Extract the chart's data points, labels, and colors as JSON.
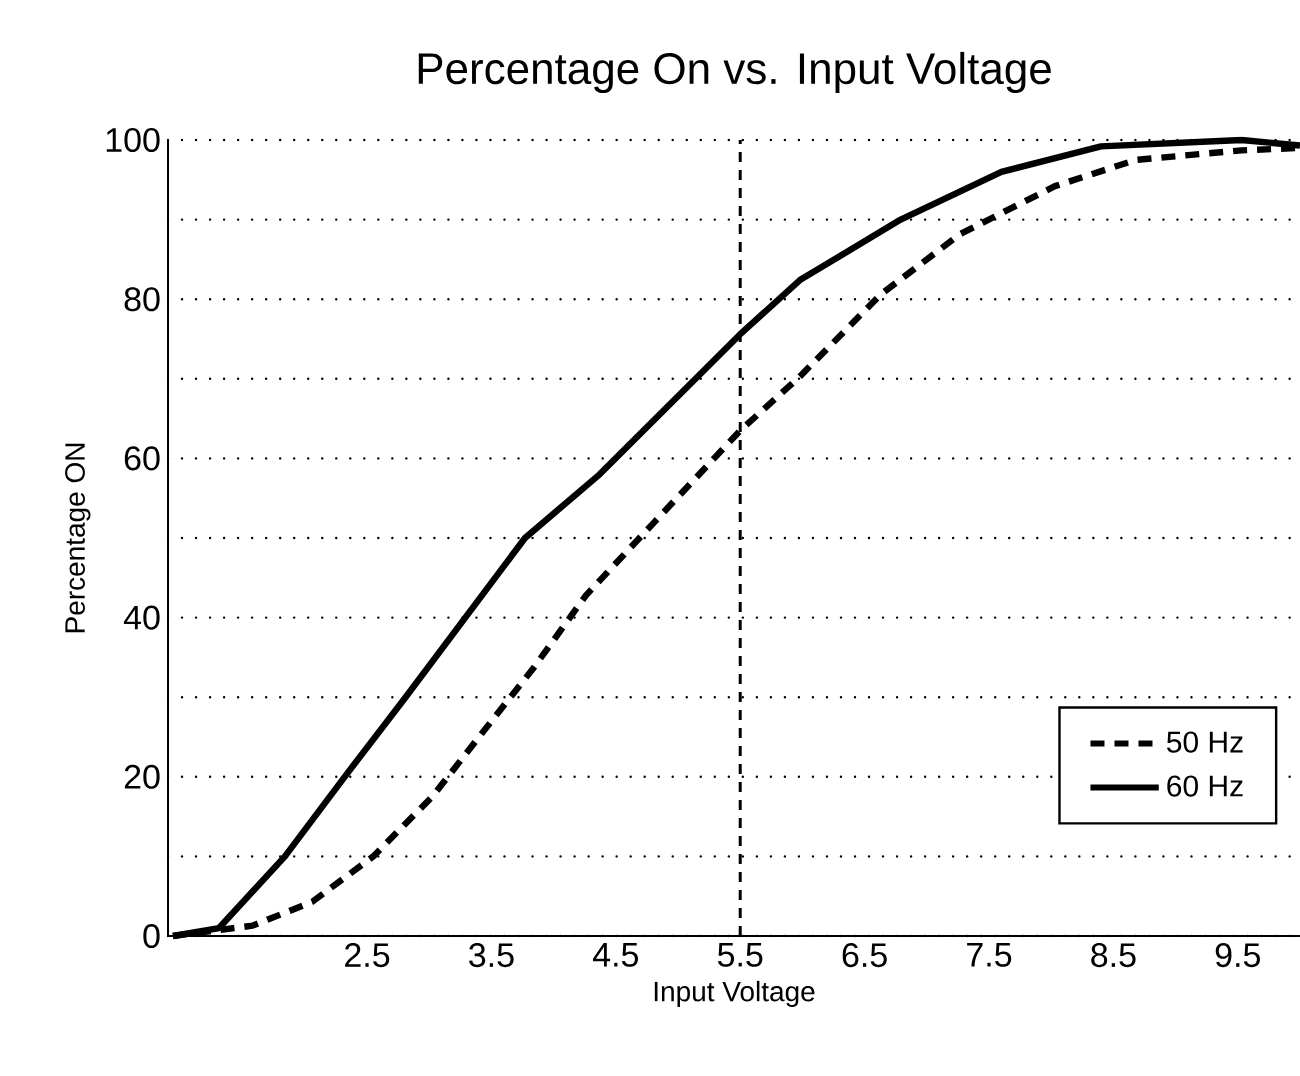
{
  "chart_data": {
    "type": "line",
    "title": "Percentage On vs. Input Voltage",
    "xlabel": "Input Voltage",
    "ylabel": "Percentage ON",
    "xlim": [
      0.9,
      10
    ],
    "xticks": [
      2.5,
      3.5,
      4.5,
      5.5,
      6.5,
      7.5,
      8.5,
      9.5
    ],
    "ylim": [
      0,
      100
    ],
    "yticks": [
      0,
      {
        "value": 10,
        "label": null
      },
      20,
      {
        "value": 30,
        "label": null
      },
      40,
      {
        "value": 50,
        "label": null
      },
      60,
      {
        "value": 70,
        "label": null
      },
      80,
      {
        "value": 90,
        "label": null
      },
      100
    ],
    "grid": "y",
    "legend": "bottom right",
    "marker": "none",
    "ref_lines": [
      {
        "axis": "x",
        "value": 5.5,
        "line_style": "dashed",
        "color": "#000000"
      }
    ],
    "series": [
      {
        "name": "50 Hz",
        "color": "#000000",
        "line_style": "dashed",
        "x": [
          0.94,
          1.58,
          2.06,
          2.55,
          3.03,
          3.4,
          3.84,
          4.26,
          4.81,
          5.5,
          5.98,
          6.63,
          7.27,
          8.03,
          8.68,
          9.53,
          10
        ],
        "values": [
          0,
          1.3,
          4.3,
          10,
          17.6,
          25,
          33.7,
          42.8,
          52,
          63.5,
          70.3,
          80.6,
          88.2,
          94.2,
          97.5,
          98.7,
          99
        ]
      },
      {
        "name": "60 Hz",
        "color": "#000000",
        "line_style": "solid",
        "x": [
          0.94,
          1.31,
          1.84,
          2.32,
          2.81,
          3.29,
          3.77,
          4.37,
          5.5,
          5.98,
          6.79,
          7.6,
          8.4,
          9.53,
          10
        ],
        "values": [
          0,
          1,
          10,
          20,
          30,
          40,
          50,
          58,
          75.6,
          82.4,
          90,
          96,
          99.2,
          100,
          99.3
        ]
      }
    ]
  }
}
